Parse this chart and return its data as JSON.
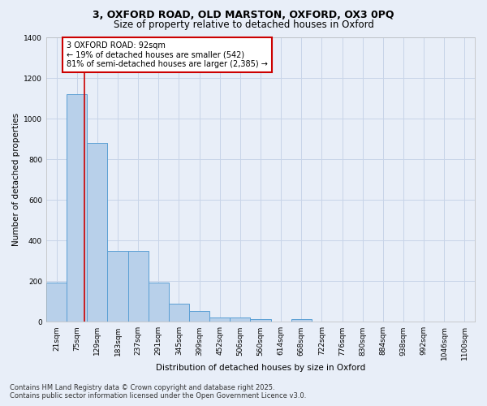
{
  "title_line1": "3, OXFORD ROAD, OLD MARSTON, OXFORD, OX3 0PQ",
  "title_line2": "Size of property relative to detached houses in Oxford",
  "xlabel": "Distribution of detached houses by size in Oxford",
  "ylabel": "Number of detached properties",
  "categories": [
    "21sqm",
    "75sqm",
    "129sqm",
    "183sqm",
    "237sqm",
    "291sqm",
    "345sqm",
    "399sqm",
    "452sqm",
    "506sqm",
    "560sqm",
    "614sqm",
    "668sqm",
    "722sqm",
    "776sqm",
    "830sqm",
    "884sqm",
    "938sqm",
    "992sqm",
    "1046sqm",
    "1100sqm"
  ],
  "values": [
    195,
    1120,
    880,
    350,
    350,
    195,
    90,
    55,
    22,
    20,
    15,
    0,
    15,
    0,
    0,
    0,
    0,
    0,
    0,
    0,
    0
  ],
  "bar_color": "#b8d0ea",
  "bar_edge_color": "#5a9fd4",
  "property_line_x": 1.35,
  "annotation_text": "3 OXFORD ROAD: 92sqm\n← 19% of detached houses are smaller (542)\n81% of semi-detached houses are larger (2,385) →",
  "annotation_box_color": "#ffffff",
  "annotation_box_edgecolor": "#cc0000",
  "red_line_color": "#cc0000",
  "grid_color": "#c8d4e8",
  "bg_color": "#e8eef8",
  "ylim": [
    0,
    1400
  ],
  "footer_line1": "Contains HM Land Registry data © Crown copyright and database right 2025.",
  "footer_line2": "Contains public sector information licensed under the Open Government Licence v3.0.",
  "title_fontsize": 9,
  "subtitle_fontsize": 8.5,
  "axis_label_fontsize": 7.5,
  "tick_fontsize": 6.5,
  "annotation_fontsize": 7,
  "footer_fontsize": 6
}
